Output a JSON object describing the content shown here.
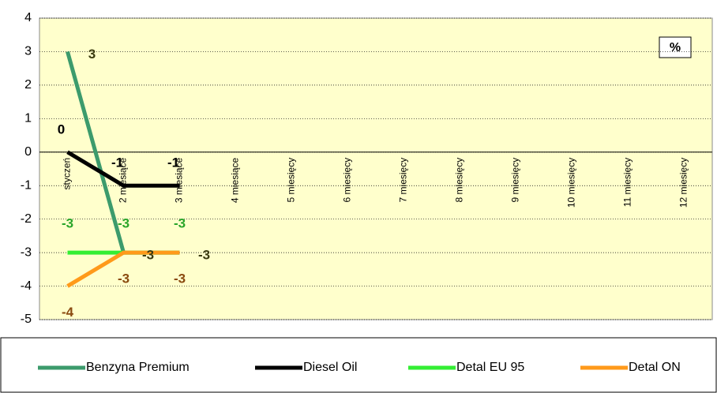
{
  "chart_data": {
    "type": "line",
    "unit_label": "%",
    "categories": [
      "styczeń",
      "2 miesiące",
      "3 miesiące",
      "4 miesiące",
      "5 miesięcy",
      "6 miesięcy",
      "7 miesięcy",
      "8 miesięcy",
      "9 miesięcy",
      "10 miesięcy",
      "11 miesięcy",
      "12 miesięcy"
    ],
    "series": [
      {
        "name": "Benzyna Premium",
        "color": "#3c9b6c",
        "label_color": "#3a3a10",
        "values": [
          3,
          -3,
          -3,
          null,
          null,
          null,
          null,
          null,
          null,
          null,
          null,
          null
        ]
      },
      {
        "name": "Diesel Oil",
        "color": "#000000",
        "label_color": "#000000",
        "values": [
          0,
          -1,
          -1,
          null,
          null,
          null,
          null,
          null,
          null,
          null,
          null,
          null
        ]
      },
      {
        "name": "Detal EU 95",
        "color": "#33ee33",
        "label_color": "#2aa52a",
        "values": [
          -3,
          -3,
          -3,
          null,
          null,
          null,
          null,
          null,
          null,
          null,
          null,
          null
        ]
      },
      {
        "name": "Detal ON",
        "color": "#ff9a1a",
        "label_color": "#8a4a10",
        "values": [
          -4,
          -3,
          -3,
          null,
          null,
          null,
          null,
          null,
          null,
          null,
          null,
          null
        ]
      }
    ],
    "ylim": [
      -5,
      4
    ],
    "yticks": [
      -5,
      -4,
      -3,
      -2,
      -1,
      0,
      1,
      2,
      3,
      4
    ],
    "grid": true
  }
}
